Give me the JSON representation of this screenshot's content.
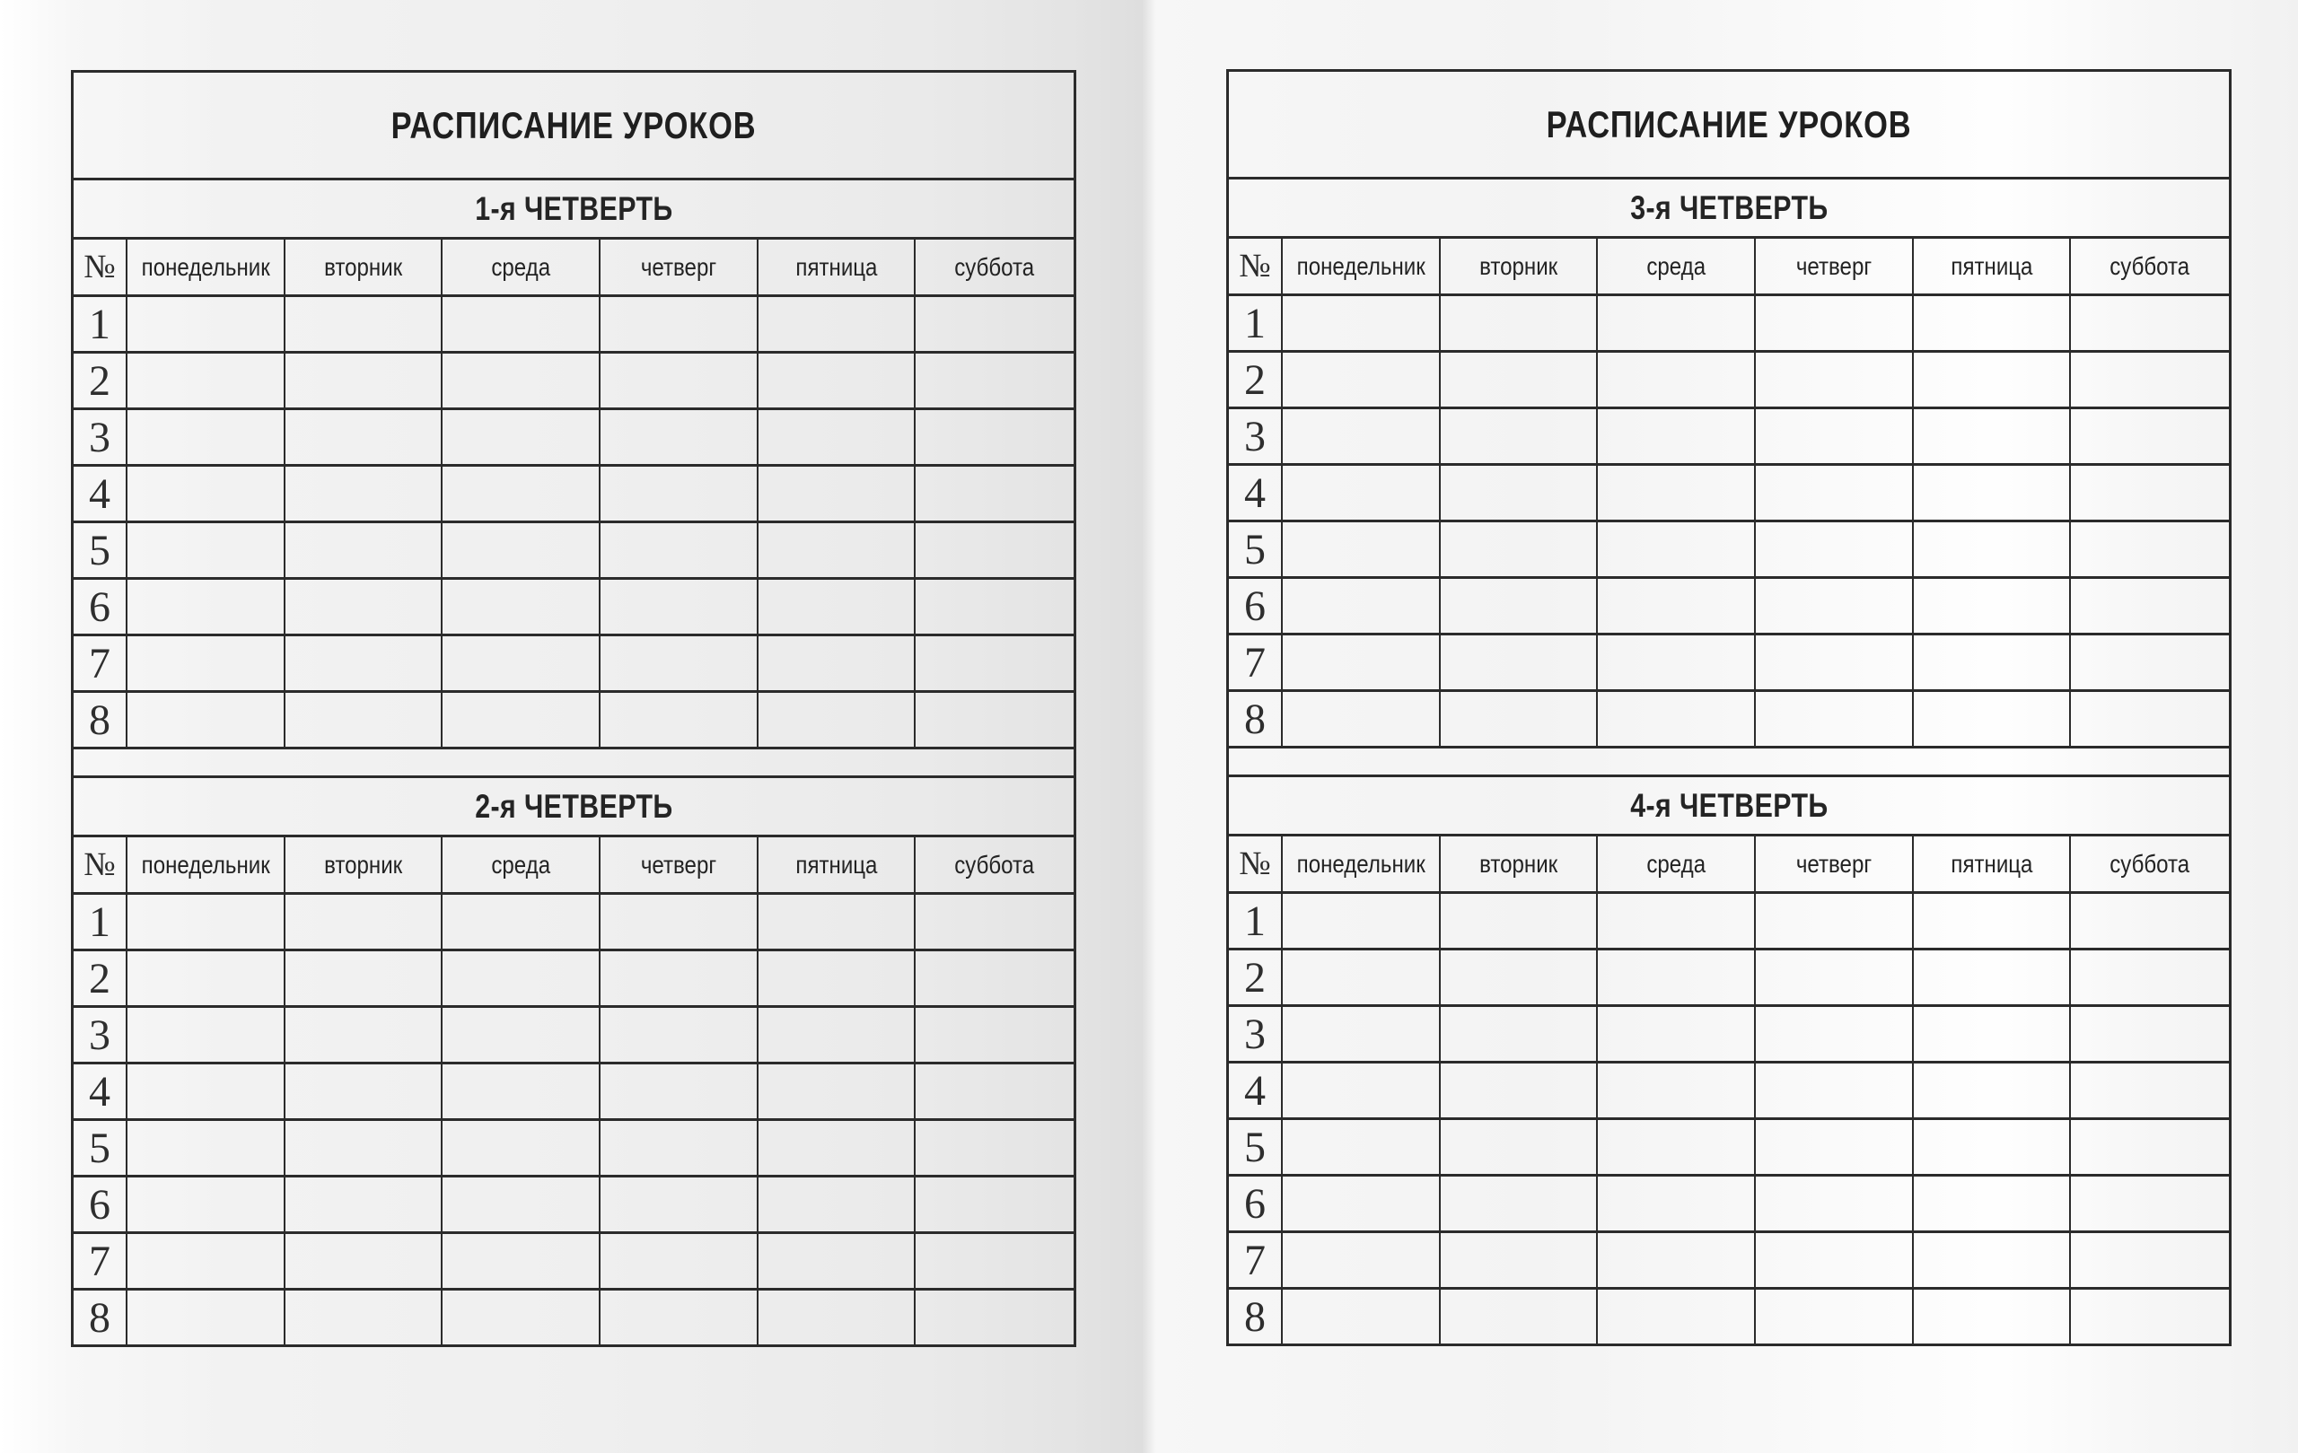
{
  "sheet": {
    "title": "РАСПИСАНИЕ УРОКОВ",
    "columns": [
      "№",
      "понедельник",
      "вторник",
      "среда",
      "четверг",
      "пятница",
      "суббота"
    ],
    "lesson_numbers": [
      "1",
      "2",
      "3",
      "4",
      "5",
      "6",
      "7",
      "8"
    ]
  },
  "pages": [
    {
      "side": "left",
      "quarters": [
        {
          "label": "1-я ЧЕТВЕРТЬ"
        },
        {
          "label": "2-я ЧЕТВЕРТЬ"
        }
      ]
    },
    {
      "side": "right",
      "quarters": [
        {
          "label": "3-я ЧЕТВЕРТЬ"
        },
        {
          "label": "4-я ЧЕТВЕРТЬ"
        }
      ]
    }
  ],
  "colors": {
    "line": "#2b2b2b",
    "text": "#232323",
    "page_edge": "#ffffff",
    "page_mid": "#efefef",
    "spine": "#dedede"
  }
}
